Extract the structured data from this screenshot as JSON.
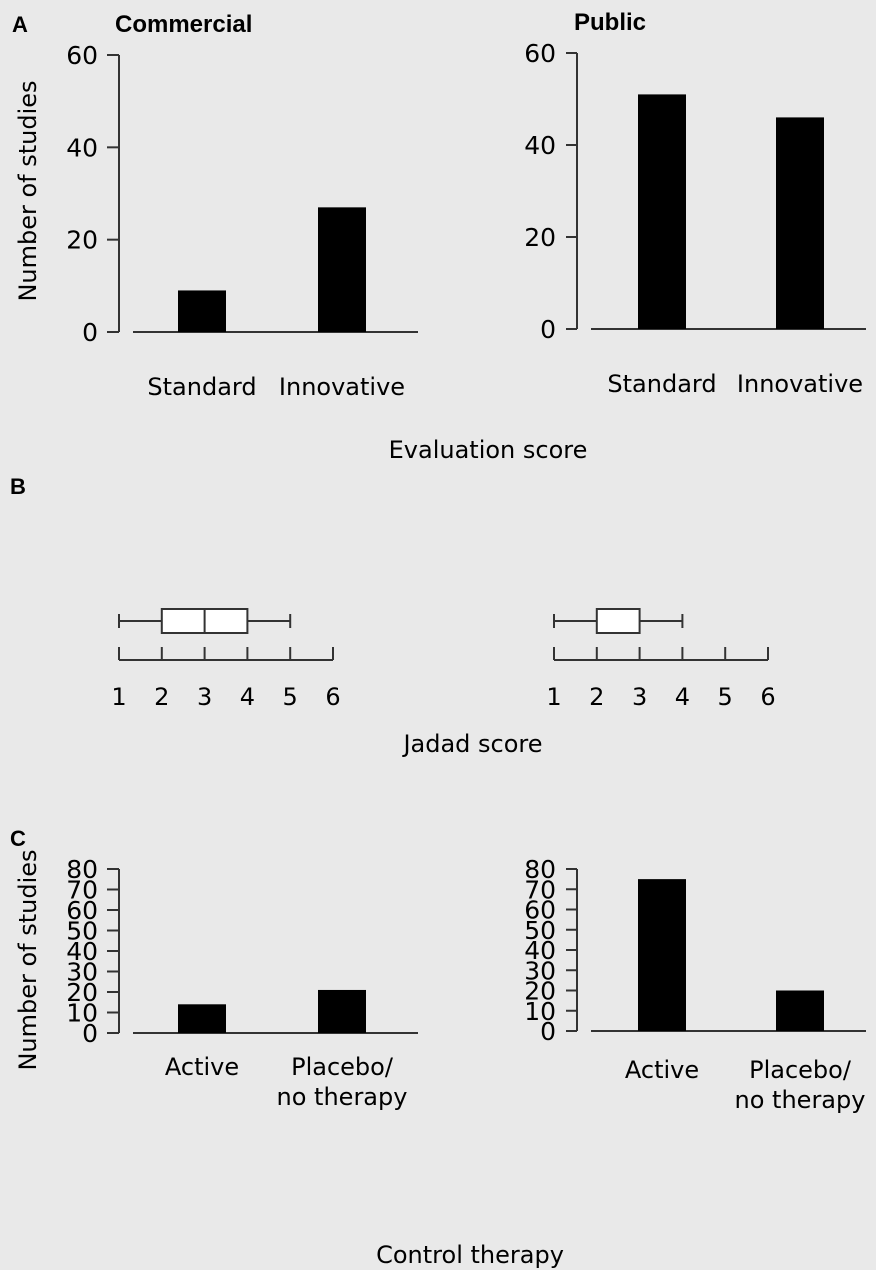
{
  "panels": {
    "A": "A",
    "B": "B",
    "C": "C"
  },
  "columns": {
    "left": "Commercial",
    "right": "Public"
  },
  "shared_labels": {
    "y_axis": "Number of studies",
    "x_axis_A": "Evaluation score",
    "x_axis_B": "Jadad score",
    "x_axis_C": "Control therapy"
  },
  "colors": {
    "background": "#e9e9e9",
    "bar": "#000000",
    "axis": "#333333"
  },
  "chart_data": [
    {
      "id": "A-commercial",
      "panel": "A",
      "type": "bar",
      "title": "Commercial",
      "categories": [
        "Standard",
        "Innovative"
      ],
      "values": [
        9,
        27
      ],
      "ylabel": "Number of studies",
      "xlabel": "Evaluation score",
      "ylim": [
        0,
        60
      ],
      "yticks": [
        0,
        20,
        40,
        60
      ],
      "grid": false
    },
    {
      "id": "A-public",
      "panel": "A",
      "type": "bar",
      "title": "Public",
      "categories": [
        "Standard",
        "Innovative"
      ],
      "values": [
        51,
        46
      ],
      "ylabel": "",
      "xlabel": "Evaluation score",
      "ylim": [
        0,
        60
      ],
      "yticks": [
        0,
        20,
        40,
        60
      ],
      "grid": false
    },
    {
      "id": "B-commercial",
      "panel": "B",
      "type": "boxplot",
      "xlabel": "Jadad score",
      "xlim": [
        1,
        6
      ],
      "xticks": [
        1,
        2,
        3,
        4,
        5,
        6
      ],
      "whisker_low": 1,
      "q1": 2,
      "median": 3,
      "q3": 4,
      "whisker_high": 5
    },
    {
      "id": "B-public",
      "panel": "B",
      "type": "boxplot",
      "xlabel": "Jadad score",
      "xlim": [
        1,
        6
      ],
      "xticks": [
        1,
        2,
        3,
        4,
        5,
        6
      ],
      "whisker_low": 1,
      "q1": 2,
      "median": 3,
      "q3": 3,
      "whisker_high": 4
    },
    {
      "id": "C-commercial",
      "panel": "C",
      "type": "bar",
      "categories": [
        [
          "Active"
        ],
        [
          "Placebo/",
          "no therapy"
        ]
      ],
      "values": [
        14,
        21
      ],
      "ylabel": "Number of studies",
      "xlabel": "Control therapy",
      "ylim": [
        0,
        80
      ],
      "yticks": [
        0,
        10,
        20,
        30,
        40,
        50,
        60,
        70,
        80
      ],
      "grid": false
    },
    {
      "id": "C-public",
      "panel": "C",
      "type": "bar",
      "categories": [
        [
          "Active"
        ],
        [
          "Placebo/",
          "no therapy"
        ]
      ],
      "values": [
        75,
        20
      ],
      "ylabel": "",
      "xlabel": "Control therapy",
      "ylim": [
        0,
        80
      ],
      "yticks": [
        0,
        10,
        20,
        30,
        40,
        50,
        60,
        70,
        80
      ],
      "grid": false
    }
  ]
}
